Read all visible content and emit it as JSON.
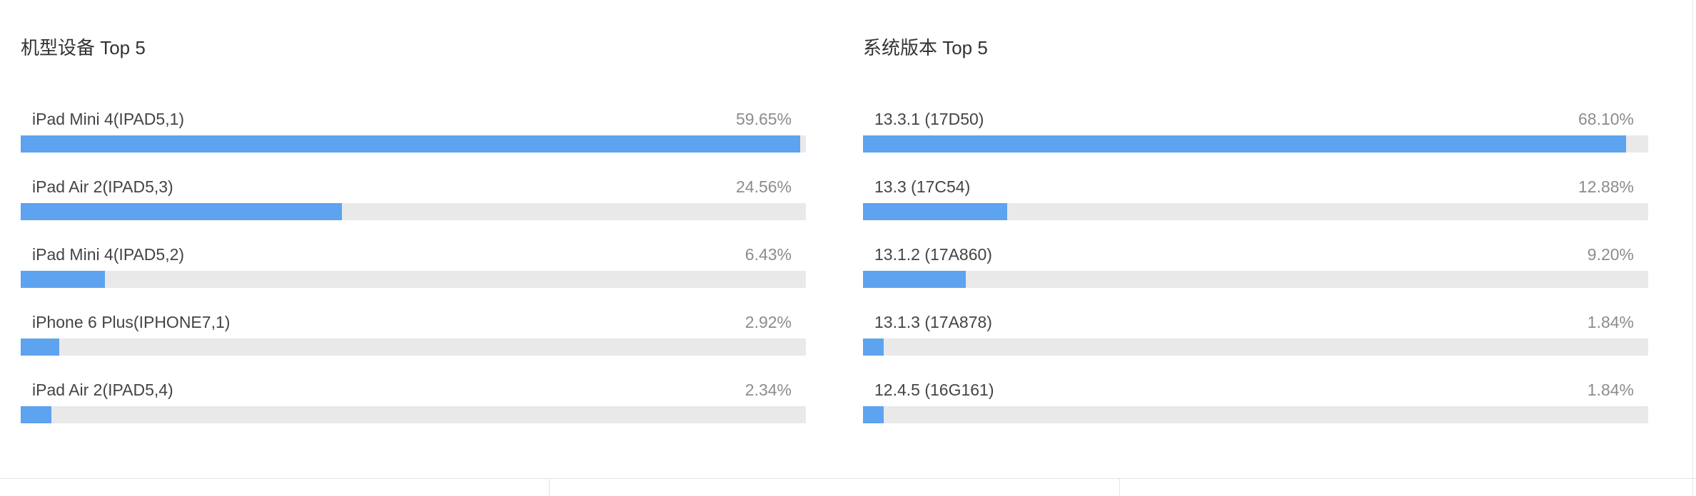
{
  "models_panel": {
    "title": "机型设备 Top 5",
    "rows": [
      {
        "label": "iPad Mini 4(IPAD5,1)",
        "percent_text": "59.65%",
        "fill_fraction": 0.993
      },
      {
        "label": "iPad Air 2(IPAD5,3)",
        "percent_text": "24.56%",
        "fill_fraction": 0.409
      },
      {
        "label": "iPad Mini 4(IPAD5,2)",
        "percent_text": "6.43%",
        "fill_fraction": 0.107
      },
      {
        "label": "iPhone 6 Plus(IPHONE7,1)",
        "percent_text": "2.92%",
        "fill_fraction": 0.049
      },
      {
        "label": "iPad Air 2(IPAD5,4)",
        "percent_text": "2.34%",
        "fill_fraction": 0.039
      }
    ]
  },
  "versions_panel": {
    "title": "系统版本 Top 5",
    "rows": [
      {
        "label": "13.3.1 (17D50)",
        "percent_text": "68.10%",
        "fill_fraction": 0.972
      },
      {
        "label": "13.3 (17C54)",
        "percent_text": "12.88%",
        "fill_fraction": 0.184
      },
      {
        "label": "13.1.2 (17A860)",
        "percent_text": "9.20%",
        "fill_fraction": 0.131
      },
      {
        "label": "13.1.3 (17A878)",
        "percent_text": "1.84%",
        "fill_fraction": 0.026
      },
      {
        "label": "12.4.5 (16G161)",
        "percent_text": "1.84%",
        "fill_fraction": 0.026
      }
    ]
  },
  "colors": {
    "bar_fill": "#5da3ef",
    "bar_track": "#e9e9e9",
    "title_text": "#333333",
    "percent_text": "#8c8c8c"
  }
}
